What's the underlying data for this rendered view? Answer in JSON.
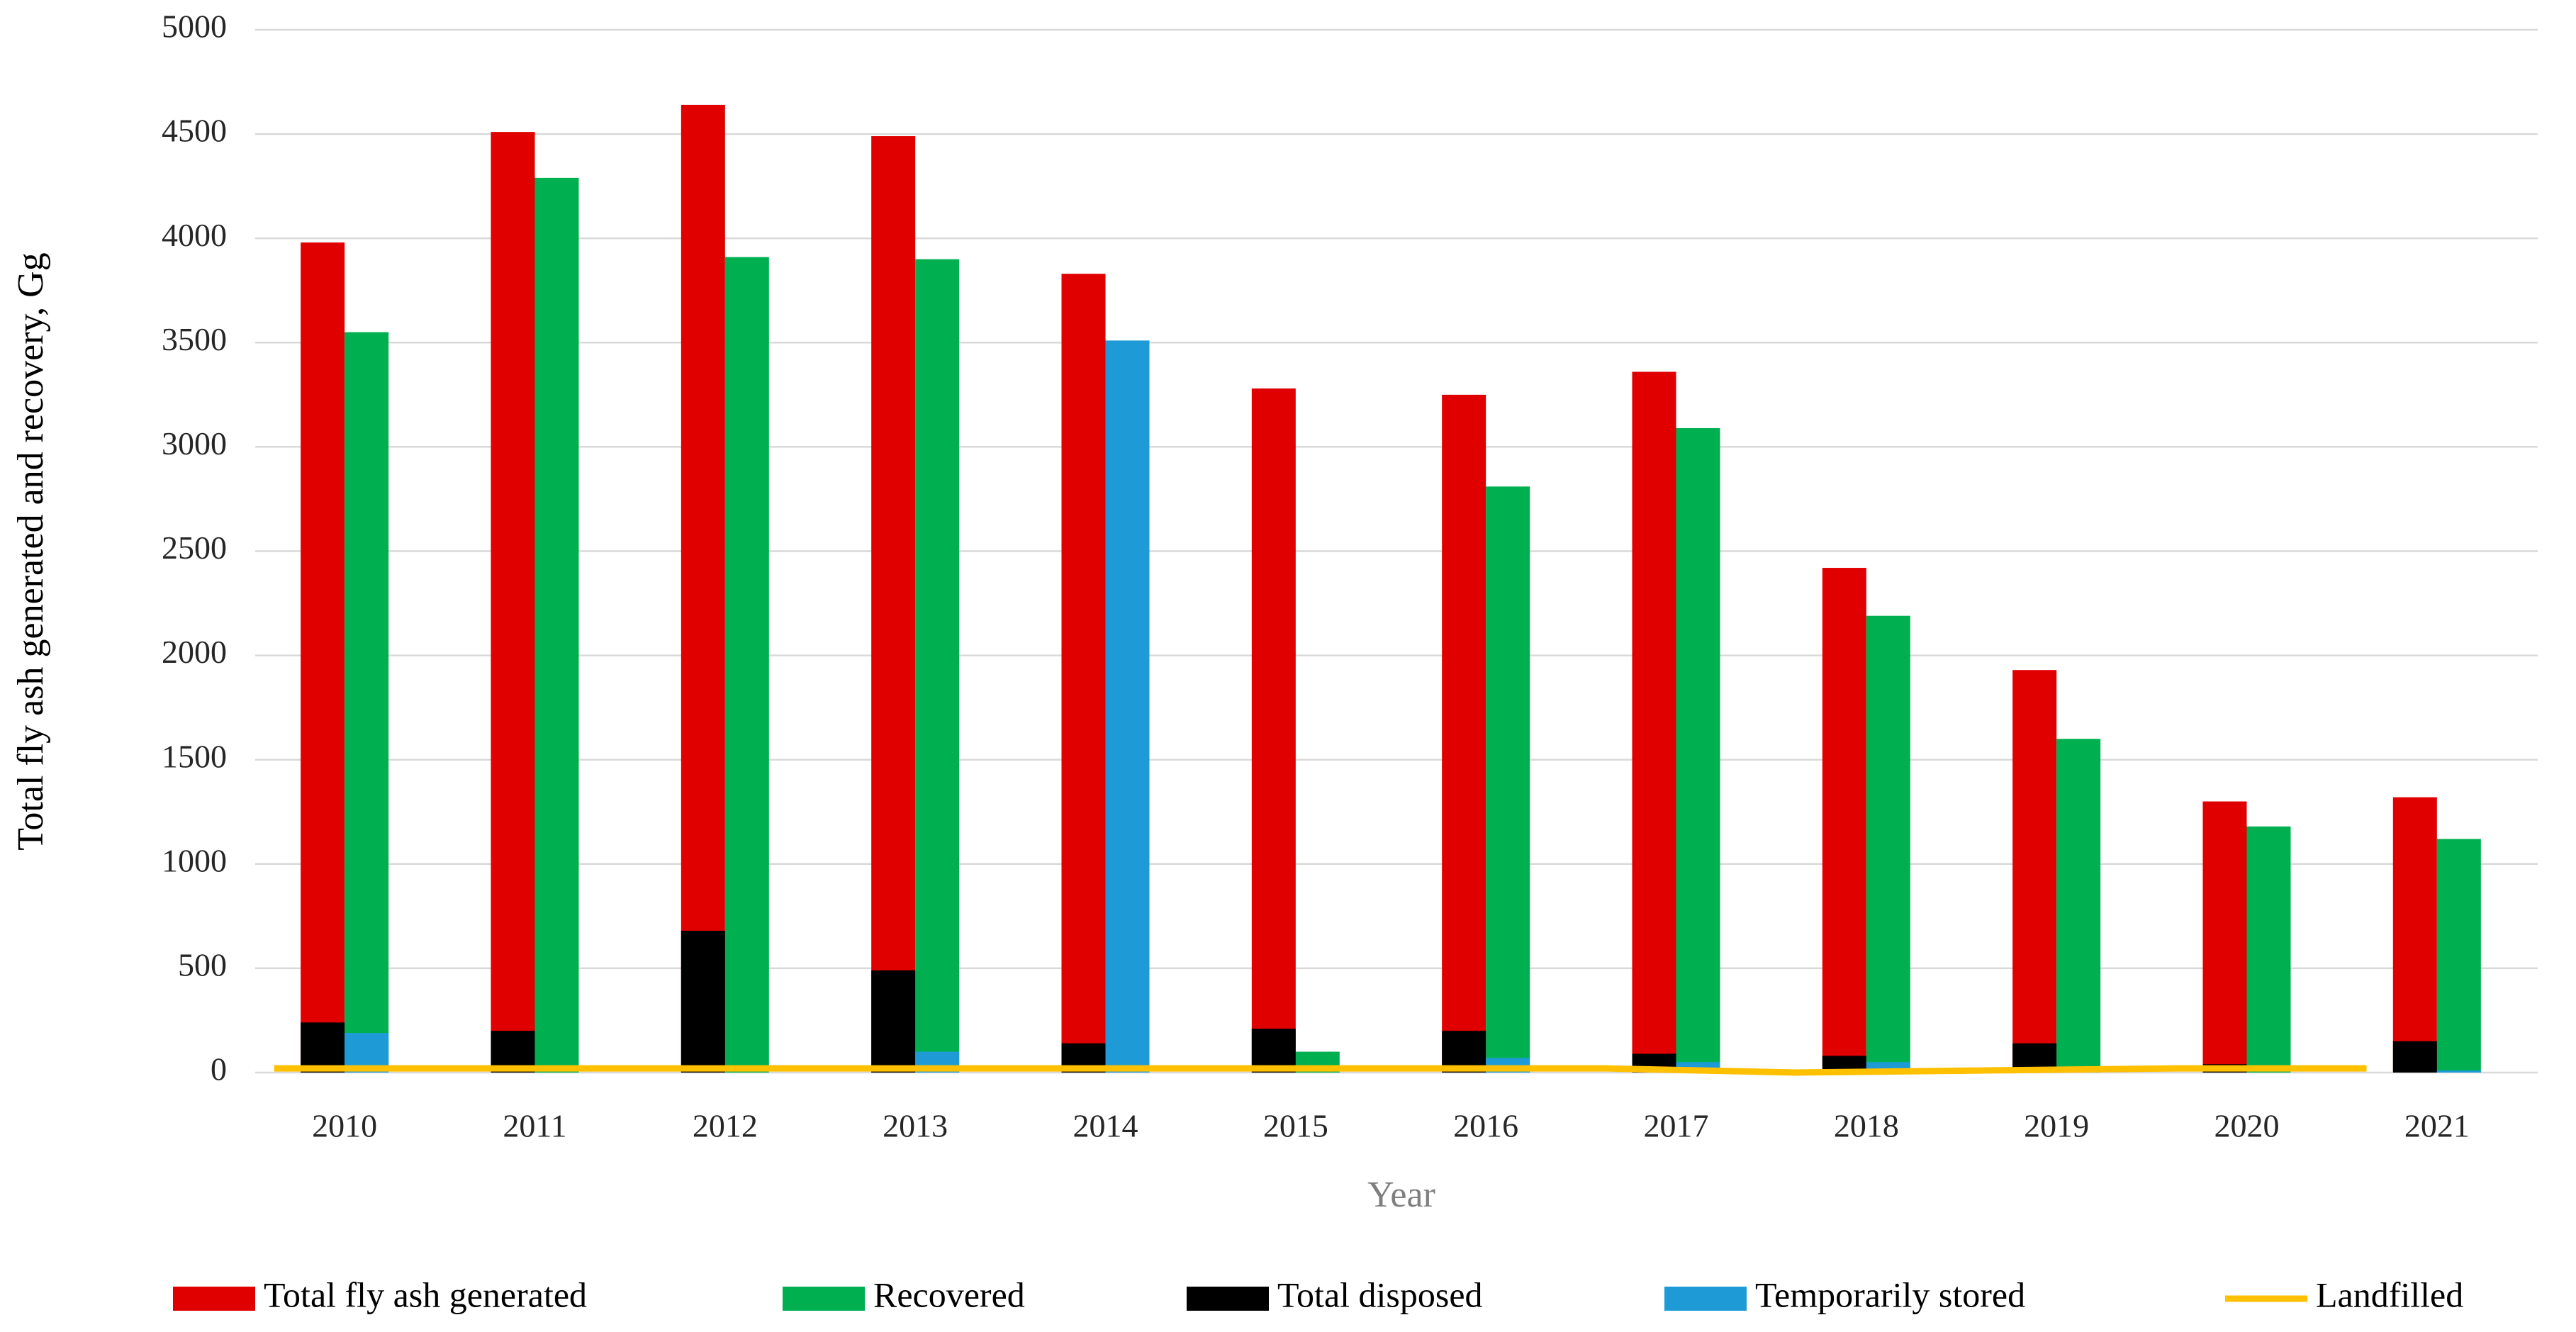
{
  "chart_data": {
    "type": "bar",
    "x_label": "Year",
    "y_label": "Total  fly ash generated and recovery, Gg",
    "categories": [
      "2010",
      "2011",
      "2012",
      "2013",
      "2014",
      "2015",
      "2016",
      "2017",
      "2018",
      "2019",
      "2020",
      "2021"
    ],
    "series": [
      {
        "name": "Total fly ash generated",
        "color": "#e00000",
        "values": [
          3980,
          4510,
          4640,
          4490,
          3830,
          3280,
          3250,
          3360,
          2420,
          1930,
          1300,
          1320
        ]
      },
      {
        "name": "Recovered",
        "color": "#00b050",
        "values": [
          3550,
          4290,
          3910,
          3900,
          null,
          100,
          2810,
          3090,
          2190,
          1600,
          1180,
          1120
        ]
      },
      {
        "name": "Total disposed",
        "color": "#000000",
        "values": [
          240,
          200,
          680,
          490,
          140,
          210,
          200,
          90,
          80,
          140,
          40,
          150
        ]
      },
      {
        "name": "Temporarily stored",
        "color": "#1e9bd7",
        "values": [
          190,
          0,
          0,
          100,
          3510,
          0,
          70,
          50,
          50,
          0,
          0,
          10
        ]
      },
      {
        "name": "Landfilled",
        "color": "#ffc000",
        "type": "line",
        "values": [
          20,
          20,
          20,
          20,
          20,
          20,
          20,
          20,
          0,
          10,
          20,
          20
        ]
      }
    ],
    "ylim": [
      0,
      5000
    ],
    "yticks": [
      0,
      500,
      1000,
      1500,
      2000,
      2500,
      3000,
      3500,
      4000,
      4500,
      5000
    ],
    "grid": true,
    "legend": "bottom"
  }
}
